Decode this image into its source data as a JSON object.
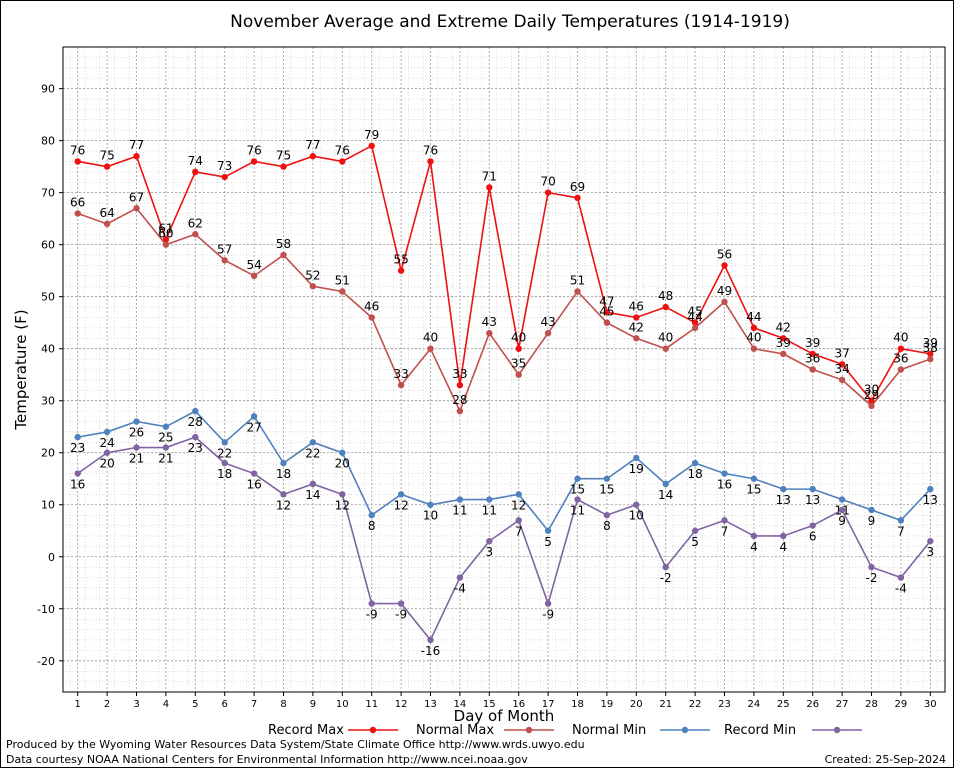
{
  "chart_data": {
    "type": "line",
    "title": "November Average and Extreme Daily Temperatures (1914-1919)",
    "xlabel": "Day of Month",
    "ylabel": "Temperature (F)",
    "ylim": [
      -26,
      98
    ],
    "xlim": [
      0.5,
      30.5
    ],
    "yticks": [
      -20,
      -10,
      0,
      10,
      20,
      30,
      40,
      50,
      60,
      70,
      80,
      90
    ],
    "x": [
      1,
      2,
      3,
      4,
      5,
      6,
      7,
      8,
      9,
      10,
      11,
      12,
      13,
      14,
      15,
      16,
      17,
      18,
      19,
      20,
      21,
      22,
      23,
      24,
      25,
      26,
      27,
      28,
      29,
      30
    ],
    "grid": true,
    "legend_placement": "bottom",
    "series": [
      {
        "name": "Record Max",
        "color": "#ee1111",
        "values": [
          76,
          75,
          77,
          61,
          74,
          73,
          76,
          75,
          77,
          76,
          79,
          55,
          76,
          33,
          71,
          40,
          70,
          69,
          47,
          46,
          48,
          45,
          56,
          44,
          42,
          39,
          37,
          30,
          40,
          39
        ],
        "label_pos": "above"
      },
      {
        "name": "Normal Max",
        "color": "#c0504d",
        "values": [
          66,
          64,
          67,
          60,
          62,
          57,
          54,
          58,
          52,
          51,
          46,
          33,
          40,
          28,
          43,
          35,
          43,
          51,
          45,
          42,
          40,
          44,
          49,
          40,
          39,
          36,
          34,
          29,
          36,
          38
        ],
        "label_pos": "above"
      },
      {
        "name": "Normal Min",
        "color": "#4f81bd",
        "values": [
          23,
          24,
          26,
          25,
          28,
          22,
          27,
          18,
          22,
          20,
          8,
          12,
          10,
          11,
          11,
          12,
          5,
          15,
          15,
          19,
          14,
          18,
          16,
          15,
          13,
          13,
          11,
          9,
          7,
          13
        ],
        "label_pos": "mixed"
      },
      {
        "name": "Record Min",
        "color": "#8064a2",
        "values": [
          16,
          20,
          21,
          21,
          23,
          18,
          16,
          12,
          14,
          12,
          -9,
          -9,
          -16,
          -4,
          3,
          7,
          -9,
          11,
          8,
          10,
          -2,
          5,
          7,
          4,
          4,
          6,
          9,
          -2,
          -4,
          3
        ],
        "label_pos": "below"
      }
    ]
  },
  "footer": {
    "line1": "Produced by the Wyoming Water Resources Data System/State Climate Office http://www.wrds.uwyo.edu",
    "line2": "Data courtesy NOAA National Centers for Environmental Information http://www.ncei.noaa.gov",
    "created": "Created:  25-Sep-2024"
  }
}
